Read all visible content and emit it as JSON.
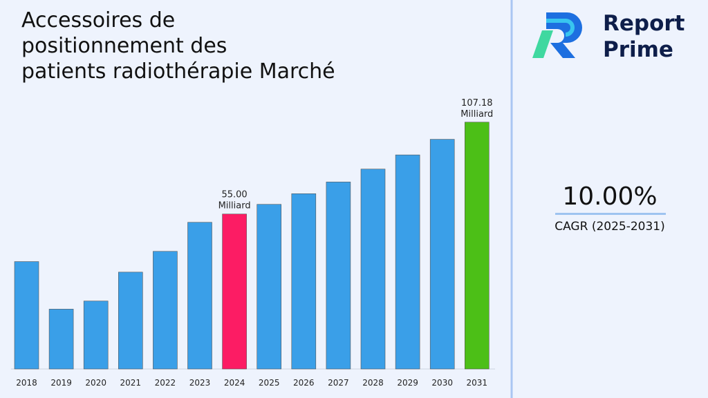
{
  "chart_data": {
    "type": "bar",
    "title": [
      "Accessoires de",
      "positionnement des",
      "patients radiothérapie Marché"
    ],
    "categories": [
      "2018",
      "2019",
      "2020",
      "2021",
      "2022",
      "2023",
      "2024",
      "2025",
      "2026",
      "2027",
      "2028",
      "2029",
      "2030",
      "2031"
    ],
    "values": [
      28,
      1,
      5.6,
      22,
      33.8,
      50.3,
      55,
      60.5,
      66.55,
      73.2,
      80.53,
      88.58,
      97.44,
      107.18
    ],
    "value_labels": [
      null,
      null,
      null,
      null,
      null,
      null,
      [
        "55.00",
        "Milliard"
      ],
      null,
      null,
      null,
      null,
      null,
      null,
      [
        "107.18",
        "Milliard"
      ]
    ],
    "colors": [
      "#3a9fe8",
      "#3a9fe8",
      "#3a9fe8",
      "#3a9fe8",
      "#3a9fe8",
      "#3a9fe8",
      "#fc1c64",
      "#3a9fe8",
      "#3a9fe8",
      "#3a9fe8",
      "#3a9fe8",
      "#3a9fe8",
      "#3a9fe8",
      "#4cbf17"
    ],
    "ylim": [
      -33,
      122
    ]
  },
  "cagr": {
    "value": "10.00%",
    "label": "CAGR (2025-2031)"
  },
  "logo": {
    "line1": "Report",
    "line2": "Prime"
  }
}
